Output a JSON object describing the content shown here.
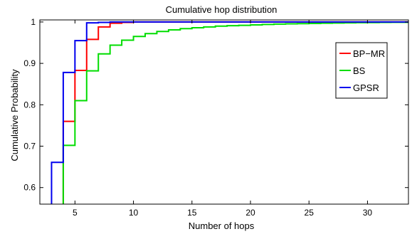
{
  "chart_data": {
    "type": "line",
    "title": "Cumulative hop distribution",
    "xlabel": "Number of hops",
    "ylabel": "Cumulative Probability",
    "xlim": [
      2,
      33.5
    ],
    "ylim": [
      0.56,
      1.005
    ],
    "x_ticks": [
      5,
      10,
      15,
      20,
      25,
      30
    ],
    "y_ticks": [
      0.6,
      0.7,
      0.8,
      0.9,
      1
    ],
    "y_tick_labels": [
      "0.6",
      "0.7",
      "0.8",
      "0.9",
      "1"
    ],
    "grid": false,
    "legend_position": "top-right",
    "step": true,
    "series": [
      {
        "name": "BP−MR",
        "color": "#ff0000",
        "x": [
          4,
          5,
          6,
          7,
          8,
          9,
          10,
          12,
          15,
          33.5
        ],
        "y": [
          0.76,
          0.883,
          0.958,
          0.988,
          0.997,
          0.999,
          1.0,
          1.0,
          1.0,
          1.0
        ]
      },
      {
        "name": "BS",
        "color": "#00dd00",
        "x": [
          4,
          5,
          6,
          7,
          8,
          9,
          10,
          11,
          12,
          13,
          14,
          15,
          16,
          17,
          18,
          19,
          20,
          21,
          22,
          23,
          24,
          25,
          26,
          27,
          28,
          29,
          30,
          31,
          32,
          33,
          33.5
        ],
        "y": [
          0.702,
          0.81,
          0.882,
          0.923,
          0.944,
          0.956,
          0.965,
          0.972,
          0.977,
          0.981,
          0.984,
          0.986,
          0.988,
          0.99,
          0.991,
          0.992,
          0.993,
          0.994,
          0.995,
          0.9955,
          0.996,
          0.9965,
          0.997,
          0.9975,
          0.998,
          0.9983,
          0.9986,
          0.9989,
          0.9991,
          0.9993,
          0.9993
        ]
      },
      {
        "name": "GPSR",
        "color": "#0000ee",
        "x": [
          2,
          3,
          4,
          5,
          6,
          7,
          8,
          33.5
        ],
        "y": [
          0.5,
          0.661,
          0.878,
          0.955,
          0.998,
          0.999,
          1.0,
          1.0
        ]
      }
    ]
  }
}
